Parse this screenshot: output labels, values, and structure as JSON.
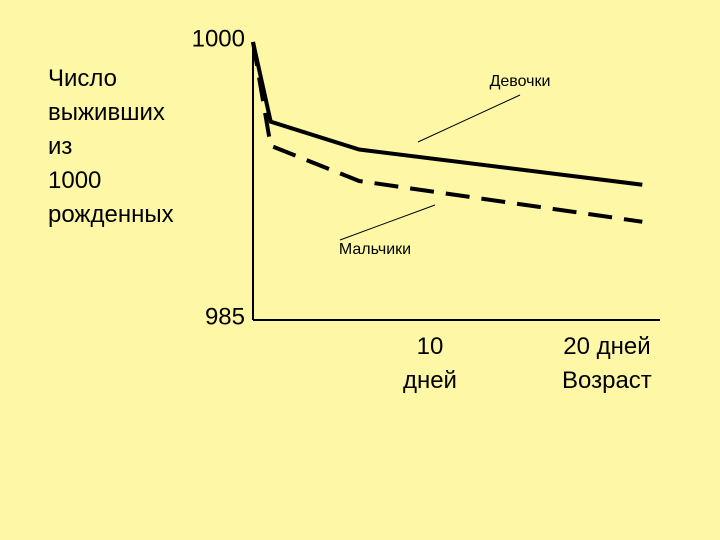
{
  "chart_data": {
    "type": "line",
    "y_label": "Число выживших из 1000 рожденных",
    "x_label": "Возраст",
    "x": [
      0,
      1,
      6,
      22
    ],
    "series": [
      {
        "name": "Девочки",
        "color": "#000000",
        "style": "solid",
        "values": [
          1000,
          995.7,
          994.2,
          992.3
        ]
      },
      {
        "name": "Мальчики",
        "color": "#000000",
        "style": "dashed",
        "values": [
          1000,
          994.4,
          992.5,
          990.3
        ]
      }
    ],
    "xlim": [
      0,
      23
    ],
    "ylim": [
      985,
      1000
    ],
    "xticks": [
      {
        "value": 10,
        "label": "10 дней"
      },
      {
        "value": 20,
        "label": "20 дней"
      }
    ],
    "yticks": [
      985,
      1000
    ],
    "background": "#fdf7a6"
  }
}
